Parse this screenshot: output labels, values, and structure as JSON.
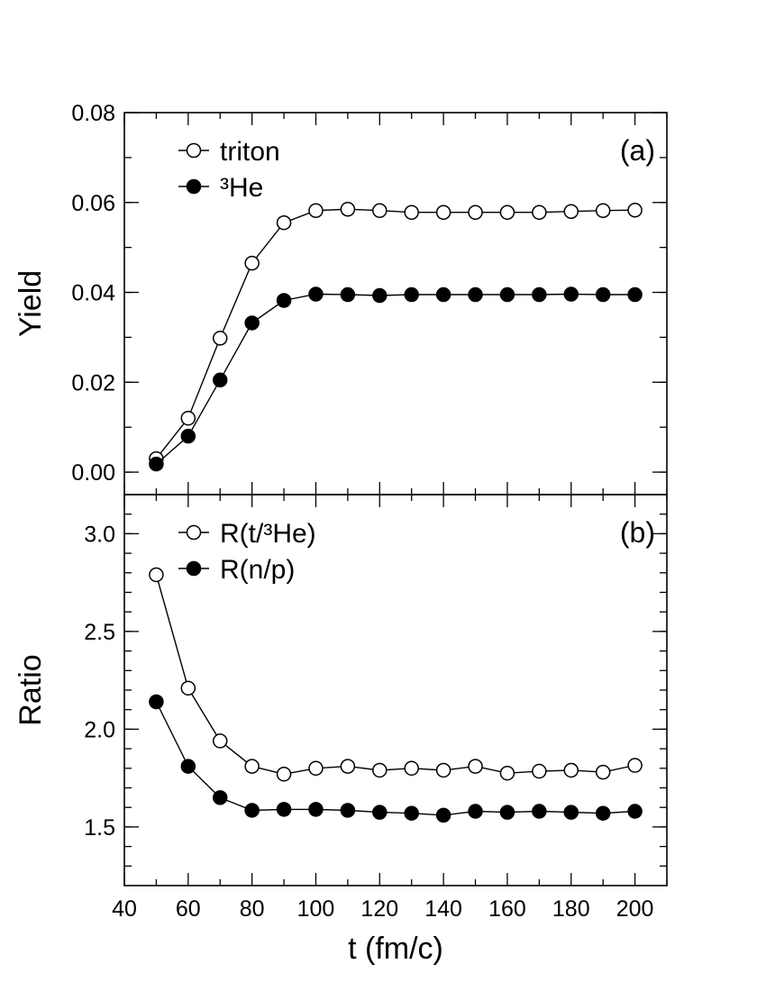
{
  "chart_data": [
    {
      "type": "line",
      "panel_label": "(a)",
      "ylabel": "Yield",
      "xlabel": "",
      "xlim": [
        40,
        210
      ],
      "ylim": [
        -0.005,
        0.08
      ],
      "yticks": [
        "0.00",
        "0.02",
        "0.04",
        "0.06",
        "0.08"
      ],
      "legend": "top-left",
      "grid": false,
      "series": [
        {
          "name": "triton",
          "marker": "open-circle",
          "x": [
            50,
            60,
            70,
            80,
            90,
            100,
            110,
            120,
            130,
            140,
            150,
            160,
            170,
            180,
            190,
            200
          ],
          "y": [
            0.003,
            0.012,
            0.0298,
            0.0465,
            0.0555,
            0.0582,
            0.0585,
            0.0582,
            0.0578,
            0.0578,
            0.0578,
            0.0578,
            0.0578,
            0.058,
            0.0582,
            0.0583
          ]
        },
        {
          "name": "³He",
          "marker": "filled-circle",
          "x": [
            50,
            60,
            70,
            80,
            90,
            100,
            110,
            120,
            130,
            140,
            150,
            160,
            170,
            180,
            190,
            200
          ],
          "y": [
            0.0018,
            0.008,
            0.0205,
            0.0332,
            0.0382,
            0.0396,
            0.0395,
            0.0393,
            0.0395,
            0.0395,
            0.0395,
            0.0395,
            0.0395,
            0.0396,
            0.0395,
            0.0395
          ]
        }
      ]
    },
    {
      "type": "line",
      "panel_label": "(b)",
      "ylabel": "Ratio",
      "xlabel": "t (fm/c)",
      "xlim": [
        40,
        210
      ],
      "ylim": [
        1.2,
        3.2
      ],
      "xticks": [
        "40",
        "60",
        "80",
        "100",
        "120",
        "140",
        "160",
        "180",
        "200"
      ],
      "yticks": [
        "1.5",
        "2.0",
        "2.5",
        "3.0"
      ],
      "legend": "top-left",
      "grid": false,
      "series": [
        {
          "name": "R(t/³He)",
          "marker": "open-circle",
          "x": [
            50,
            60,
            70,
            80,
            90,
            100,
            110,
            120,
            130,
            140,
            150,
            160,
            170,
            180,
            190,
            200
          ],
          "y": [
            2.79,
            2.21,
            1.94,
            1.81,
            1.77,
            1.8,
            1.81,
            1.79,
            1.8,
            1.79,
            1.81,
            1.775,
            1.785,
            1.79,
            1.78,
            1.815
          ]
        },
        {
          "name": "R(n/p)",
          "marker": "filled-circle",
          "x": [
            50,
            60,
            70,
            80,
            90,
            100,
            110,
            120,
            130,
            140,
            150,
            160,
            170,
            180,
            190,
            200
          ],
          "y": [
            2.14,
            1.81,
            1.65,
            1.585,
            1.59,
            1.59,
            1.585,
            1.575,
            1.57,
            1.56,
            1.58,
            1.575,
            1.58,
            1.575,
            1.57,
            1.58
          ]
        }
      ]
    }
  ]
}
